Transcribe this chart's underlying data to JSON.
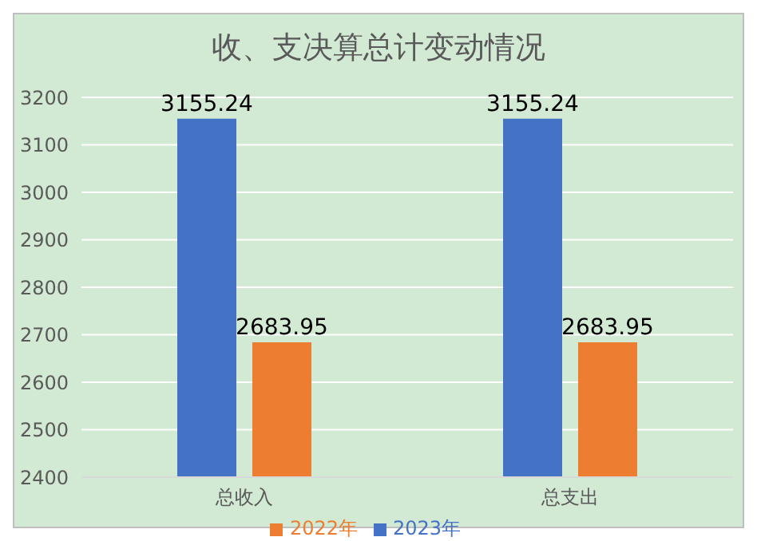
{
  "chart_data": {
    "type": "bar",
    "title": "收、支决算总计变动情况",
    "categories": [
      "总收入",
      "总支出"
    ],
    "series": [
      {
        "name": "2023年",
        "color": "#4472c4",
        "values": [
          3155.24,
          3155.24
        ]
      },
      {
        "name": "2022年",
        "color": "#ed7d31",
        "values": [
          2683.95,
          2683.95
        ]
      }
    ],
    "ylim": [
      2400,
      3200
    ],
    "yticks": [
      2400,
      2500,
      2600,
      2700,
      2800,
      2900,
      3000,
      3100,
      3200
    ],
    "grid": "y",
    "data_labels": true,
    "legend": "bottom"
  }
}
